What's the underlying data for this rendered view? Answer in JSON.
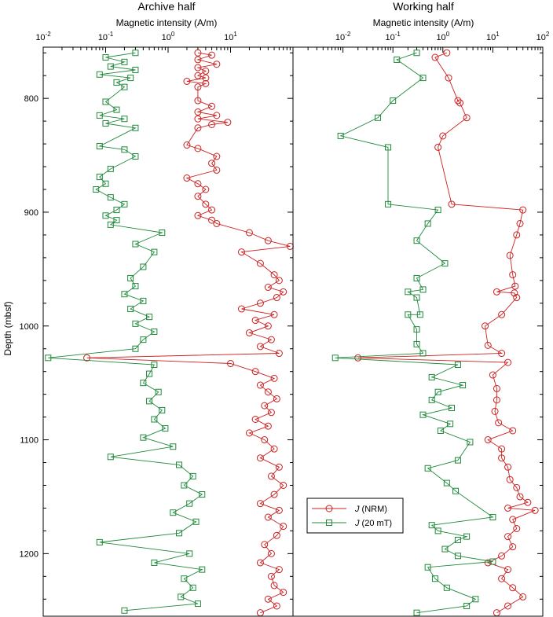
{
  "colors": {
    "nrm": "#cc1f1f",
    "demag": "#1f8a3a",
    "axis": "#000000"
  },
  "chart_data": [
    {
      "type": "scatter",
      "title": "Archive half",
      "xlabel": "Magnetic intensity (A/m)",
      "ylabel": "Depth (mbsf)",
      "xscale": "log",
      "xlim": [
        0.01,
        100
      ],
      "ylim": [
        1255,
        755
      ],
      "x_ticks": [
        {
          "base": "10",
          "exp": "-2"
        },
        {
          "base": "10",
          "exp": "-1"
        },
        {
          "base": "10",
          "exp": "0"
        },
        {
          "base": "10",
          "exp": "1"
        }
      ],
      "y_ticks": [
        "800",
        "900",
        "1000",
        "1100",
        "1200"
      ],
      "series": [
        {
          "name": "J (NRM)",
          "marker": "circle",
          "points": [
            [
              3,
              760
            ],
            [
              5,
              762
            ],
            [
              3,
              766
            ],
            [
              6,
              770
            ],
            [
              3,
              773
            ],
            [
              4,
              776
            ],
            [
              3,
              780
            ],
            [
              4,
              782
            ],
            [
              2,
              785
            ],
            [
              4,
              787
            ],
            [
              3,
              790
            ],
            [
              3,
              802
            ],
            [
              5,
              807
            ],
            [
              3,
              812
            ],
            [
              6,
              815
            ],
            [
              3,
              818
            ],
            [
              9,
              821
            ],
            [
              5,
              823
            ],
            [
              3,
              826
            ],
            [
              2,
              841
            ],
            [
              3,
              844
            ],
            [
              6,
              851
            ],
            [
              5,
              857
            ],
            [
              6,
              863
            ],
            [
              2,
              870
            ],
            [
              3,
              875
            ],
            [
              4,
              880
            ],
            [
              3,
              886
            ],
            [
              4,
              893
            ],
            [
              5,
              898
            ],
            [
              3,
              903
            ],
            [
              5,
              907
            ],
            [
              6,
              910
            ],
            [
              20,
              918
            ],
            [
              40,
              925
            ],
            [
              90,
              930
            ],
            [
              15,
              935
            ],
            [
              30,
              945
            ],
            [
              50,
              955
            ],
            [
              60,
              960
            ],
            [
              40,
              966
            ],
            [
              70,
              970
            ],
            [
              55,
              975
            ],
            [
              30,
              980
            ],
            [
              15,
              985
            ],
            [
              50,
              990
            ],
            [
              25,
              995
            ],
            [
              40,
              1000
            ],
            [
              20,
              1006
            ],
            [
              45,
              1012
            ],
            [
              30,
              1018
            ],
            [
              60,
              1024
            ],
            [
              0.05,
              1028
            ],
            [
              10,
              1033
            ],
            [
              25,
              1040
            ],
            [
              50,
              1046
            ],
            [
              30,
              1052
            ],
            [
              40,
              1058
            ],
            [
              55,
              1064
            ],
            [
              35,
              1070
            ],
            [
              45,
              1076
            ],
            [
              25,
              1082
            ],
            [
              40,
              1088
            ],
            [
              20,
              1094
            ],
            [
              35,
              1100
            ],
            [
              50,
              1108
            ],
            [
              30,
              1116
            ],
            [
              60,
              1124
            ],
            [
              45,
              1132
            ],
            [
              70,
              1140
            ],
            [
              50,
              1148
            ],
            [
              30,
              1156
            ],
            [
              60,
              1162
            ],
            [
              40,
              1168
            ],
            [
              70,
              1176
            ],
            [
              55,
              1184
            ],
            [
              35,
              1192
            ],
            [
              45,
              1200
            ],
            [
              30,
              1208
            ],
            [
              60,
              1214
            ],
            [
              45,
              1220
            ],
            [
              50,
              1228
            ],
            [
              70,
              1234
            ],
            [
              40,
              1240
            ],
            [
              55,
              1246
            ],
            [
              30,
              1252
            ]
          ]
        },
        {
          "name": "J (20 mT)",
          "marker": "square",
          "points": [
            [
              0.3,
              760
            ],
            [
              0.1,
              764
            ],
            [
              0.2,
              768
            ],
            [
              0.12,
              772
            ],
            [
              0.3,
              775
            ],
            [
              0.08,
              779
            ],
            [
              0.25,
              782
            ],
            [
              0.15,
              786
            ],
            [
              0.2,
              790
            ],
            [
              0.1,
              803
            ],
            [
              0.15,
              810
            ],
            [
              0.08,
              815
            ],
            [
              0.2,
              818
            ],
            [
              0.1,
              822
            ],
            [
              0.3,
              826
            ],
            [
              0.08,
              842
            ],
            [
              0.2,
              845
            ],
            [
              0.3,
              851
            ],
            [
              0.12,
              862
            ],
            [
              0.08,
              869
            ],
            [
              0.1,
              875
            ],
            [
              0.07,
              880
            ],
            [
              0.12,
              887
            ],
            [
              0.2,
              893
            ],
            [
              0.15,
              898
            ],
            [
              0.1,
              903
            ],
            [
              0.15,
              907
            ],
            [
              0.12,
              911
            ],
            [
              0.8,
              918
            ],
            [
              0.3,
              928
            ],
            [
              0.6,
              935
            ],
            [
              0.4,
              948
            ],
            [
              0.25,
              958
            ],
            [
              0.3,
              965
            ],
            [
              0.2,
              972
            ],
            [
              0.4,
              978
            ],
            [
              0.25,
              985
            ],
            [
              0.5,
              992
            ],
            [
              0.3,
              998
            ],
            [
              0.6,
              1005
            ],
            [
              0.4,
              1012
            ],
            [
              0.3,
              1020
            ],
            [
              0.012,
              1028
            ],
            [
              0.6,
              1034
            ],
            [
              0.5,
              1042
            ],
            [
              0.4,
              1050
            ],
            [
              0.7,
              1058
            ],
            [
              0.5,
              1066
            ],
            [
              0.8,
              1074
            ],
            [
              0.6,
              1082
            ],
            [
              0.9,
              1090
            ],
            [
              0.4,
              1098
            ],
            [
              1.2,
              1106
            ],
            [
              0.12,
              1115
            ],
            [
              1.5,
              1122
            ],
            [
              2.5,
              1132
            ],
            [
              1.8,
              1140
            ],
            [
              3.5,
              1148
            ],
            [
              2.2,
              1156
            ],
            [
              1.2,
              1164
            ],
            [
              2.8,
              1172
            ],
            [
              1.5,
              1182
            ],
            [
              0.08,
              1190
            ],
            [
              2.2,
              1200
            ],
            [
              0.6,
              1208
            ],
            [
              3.5,
              1214
            ],
            [
              1.8,
              1222
            ],
            [
              2.5,
              1230
            ],
            [
              1.6,
              1238
            ],
            [
              3,
              1244
            ],
            [
              0.2,
              1250
            ]
          ]
        }
      ]
    },
    {
      "type": "line",
      "title": "Working half",
      "xlabel": "Magnetic intensity (A/m)",
      "xscale": "log",
      "xlim": [
        0.001,
        100
      ],
      "ylim": [
        1255,
        755
      ],
      "x_ticks": [
        {
          "base": "10",
          "exp": "-2"
        },
        {
          "base": "10",
          "exp": "-1"
        },
        {
          "base": "10",
          "exp": "0"
        },
        {
          "base": "10",
          "exp": "1"
        },
        {
          "base": "10",
          "exp": "2"
        }
      ],
      "legend": {
        "position": "lower-right",
        "entries": [
          {
            "symbol": "J",
            "text": " (NRM)"
          },
          {
            "symbol": "J",
            "text": " (20  mT)"
          }
        ]
      },
      "series": [
        {
          "name": "J (NRM)",
          "marker": "circle",
          "points": [
            [
              1.2,
              760
            ],
            [
              0.7,
              764
            ],
            [
              1.3,
              782
            ],
            [
              2,
              802
            ],
            [
              2.2,
              804
            ],
            [
              3,
              817
            ],
            [
              1,
              833
            ],
            [
              0.8,
              843
            ],
            [
              1.5,
              893
            ],
            [
              40,
              898
            ],
            [
              35,
              910
            ],
            [
              30,
              920
            ],
            [
              22,
              938
            ],
            [
              25,
              955
            ],
            [
              28,
              965
            ],
            [
              30,
              975
            ],
            [
              27,
              971
            ],
            [
              12,
              970
            ],
            [
              15,
              990
            ],
            [
              7,
              1000
            ],
            [
              8,
              1017
            ],
            [
              15,
              1024
            ],
            [
              20,
              1032
            ],
            [
              0.02,
              1028
            ],
            [
              10,
              1043
            ],
            [
              12,
              1055
            ],
            [
              12,
              1065
            ],
            [
              11,
              1075
            ],
            [
              13,
              1085
            ],
            [
              25,
              1092
            ],
            [
              8,
              1100
            ],
            [
              15,
              1108
            ],
            [
              15,
              1116
            ],
            [
              20,
              1124
            ],
            [
              22,
              1135
            ],
            [
              30,
              1142
            ],
            [
              35,
              1150
            ],
            [
              50,
              1155
            ],
            [
              20,
              1160
            ],
            [
              70,
              1162
            ],
            [
              25,
              1170
            ],
            [
              30,
              1178
            ],
            [
              20,
              1185
            ],
            [
              25,
              1194
            ],
            [
              15,
              1202
            ],
            [
              8,
              1208
            ],
            [
              20,
              1214
            ],
            [
              15,
              1222
            ],
            [
              25,
              1230
            ],
            [
              40,
              1238
            ],
            [
              20,
              1246
            ],
            [
              12,
              1252
            ]
          ]
        },
        {
          "name": "J (20 mT)",
          "marker": "square",
          "points": [
            [
              0.3,
              760
            ],
            [
              0.12,
              766
            ],
            [
              0.4,
              782
            ],
            [
              0.1,
              802
            ],
            [
              0.05,
              817
            ],
            [
              0.009,
              833
            ],
            [
              0.08,
              843
            ],
            [
              0.08,
              893
            ],
            [
              0.8,
              898
            ],
            [
              0.5,
              910
            ],
            [
              0.3,
              925
            ],
            [
              1.1,
              945
            ],
            [
              0.3,
              958
            ],
            [
              0.4,
              968
            ],
            [
              0.2,
              970
            ],
            [
              0.3,
              975
            ],
            [
              0.35,
              990
            ],
            [
              0.2,
              990
            ],
            [
              0.3,
              1003
            ],
            [
              0.3,
              1016
            ],
            [
              0.4,
              1024
            ],
            [
              0.007,
              1028
            ],
            [
              2,
              1034
            ],
            [
              0.6,
              1045
            ],
            [
              2.5,
              1052
            ],
            [
              0.8,
              1058
            ],
            [
              0.6,
              1065
            ],
            [
              1.5,
              1072
            ],
            [
              0.4,
              1078
            ],
            [
              1.4,
              1086
            ],
            [
              0.9,
              1092
            ],
            [
              3.5,
              1102
            ],
            [
              2,
              1118
            ],
            [
              0.5,
              1125
            ],
            [
              1.2,
              1138
            ],
            [
              1.8,
              1145
            ],
            [
              10,
              1168
            ],
            [
              0.6,
              1175
            ],
            [
              0.8,
              1180
            ],
            [
              3,
              1185
            ],
            [
              2,
              1188
            ],
            [
              1.1,
              1196
            ],
            [
              2,
              1202
            ],
            [
              10,
              1207
            ],
            [
              0.5,
              1212
            ],
            [
              0.7,
              1222
            ],
            [
              1.2,
              1230
            ],
            [
              4.5,
              1240
            ],
            [
              3,
              1246
            ],
            [
              0.3,
              1252
            ]
          ]
        }
      ]
    }
  ]
}
